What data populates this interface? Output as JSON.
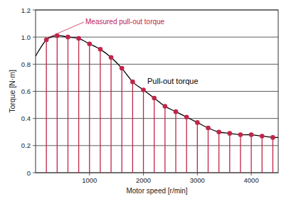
{
  "chart_data": {
    "type": "line",
    "x_label": "Motor speed [r/min]",
    "y_label": "Torque [N·m]",
    "xlim": [
      0,
      4500
    ],
    "ylim": [
      0,
      1.2
    ],
    "xticks": [
      1000,
      2000,
      3000,
      4000
    ],
    "yticks": [
      0,
      0.2,
      0.4,
      0.6,
      0.8,
      {
        "value": 1,
        "label": "1.0"
      },
      1.2
    ],
    "grid": true,
    "series": [
      {
        "name": "Measured pull-out torque",
        "type": "stem",
        "color": "#c0254a",
        "marker": "circle",
        "x": [
          200,
          400,
          600,
          800,
          1000,
          1200,
          1400,
          1600,
          1800,
          2000,
          2200,
          2400,
          2600,
          2800,
          3000,
          3200,
          3400,
          3600,
          3800,
          4000,
          4200,
          4400
        ],
        "values": [
          0.98,
          1.01,
          1.0,
          0.99,
          0.95,
          0.91,
          0.85,
          0.77,
          0.67,
          0.61,
          0.55,
          0.49,
          0.45,
          0.41,
          0.37,
          0.33,
          0.3,
          0.29,
          0.28,
          0.28,
          0.27,
          0.26
        ]
      },
      {
        "name": "Pull-out torque",
        "type": "line",
        "color": "#000000",
        "line_style": "solid",
        "x": [
          0,
          200,
          400,
          600,
          800,
          1000,
          1200,
          1400,
          1600,
          1800,
          2000,
          2200,
          2400,
          2600,
          2800,
          3000,
          3200,
          3400,
          3600,
          3800,
          4000,
          4200,
          4400,
          4500
        ],
        "values": [
          0.86,
          0.98,
          1.01,
          1.0,
          0.99,
          0.95,
          0.91,
          0.85,
          0.77,
          0.67,
          0.61,
          0.55,
          0.49,
          0.45,
          0.41,
          0.37,
          0.33,
          0.3,
          0.29,
          0.28,
          0.28,
          0.27,
          0.26,
          0.26
        ]
      }
    ]
  }
}
